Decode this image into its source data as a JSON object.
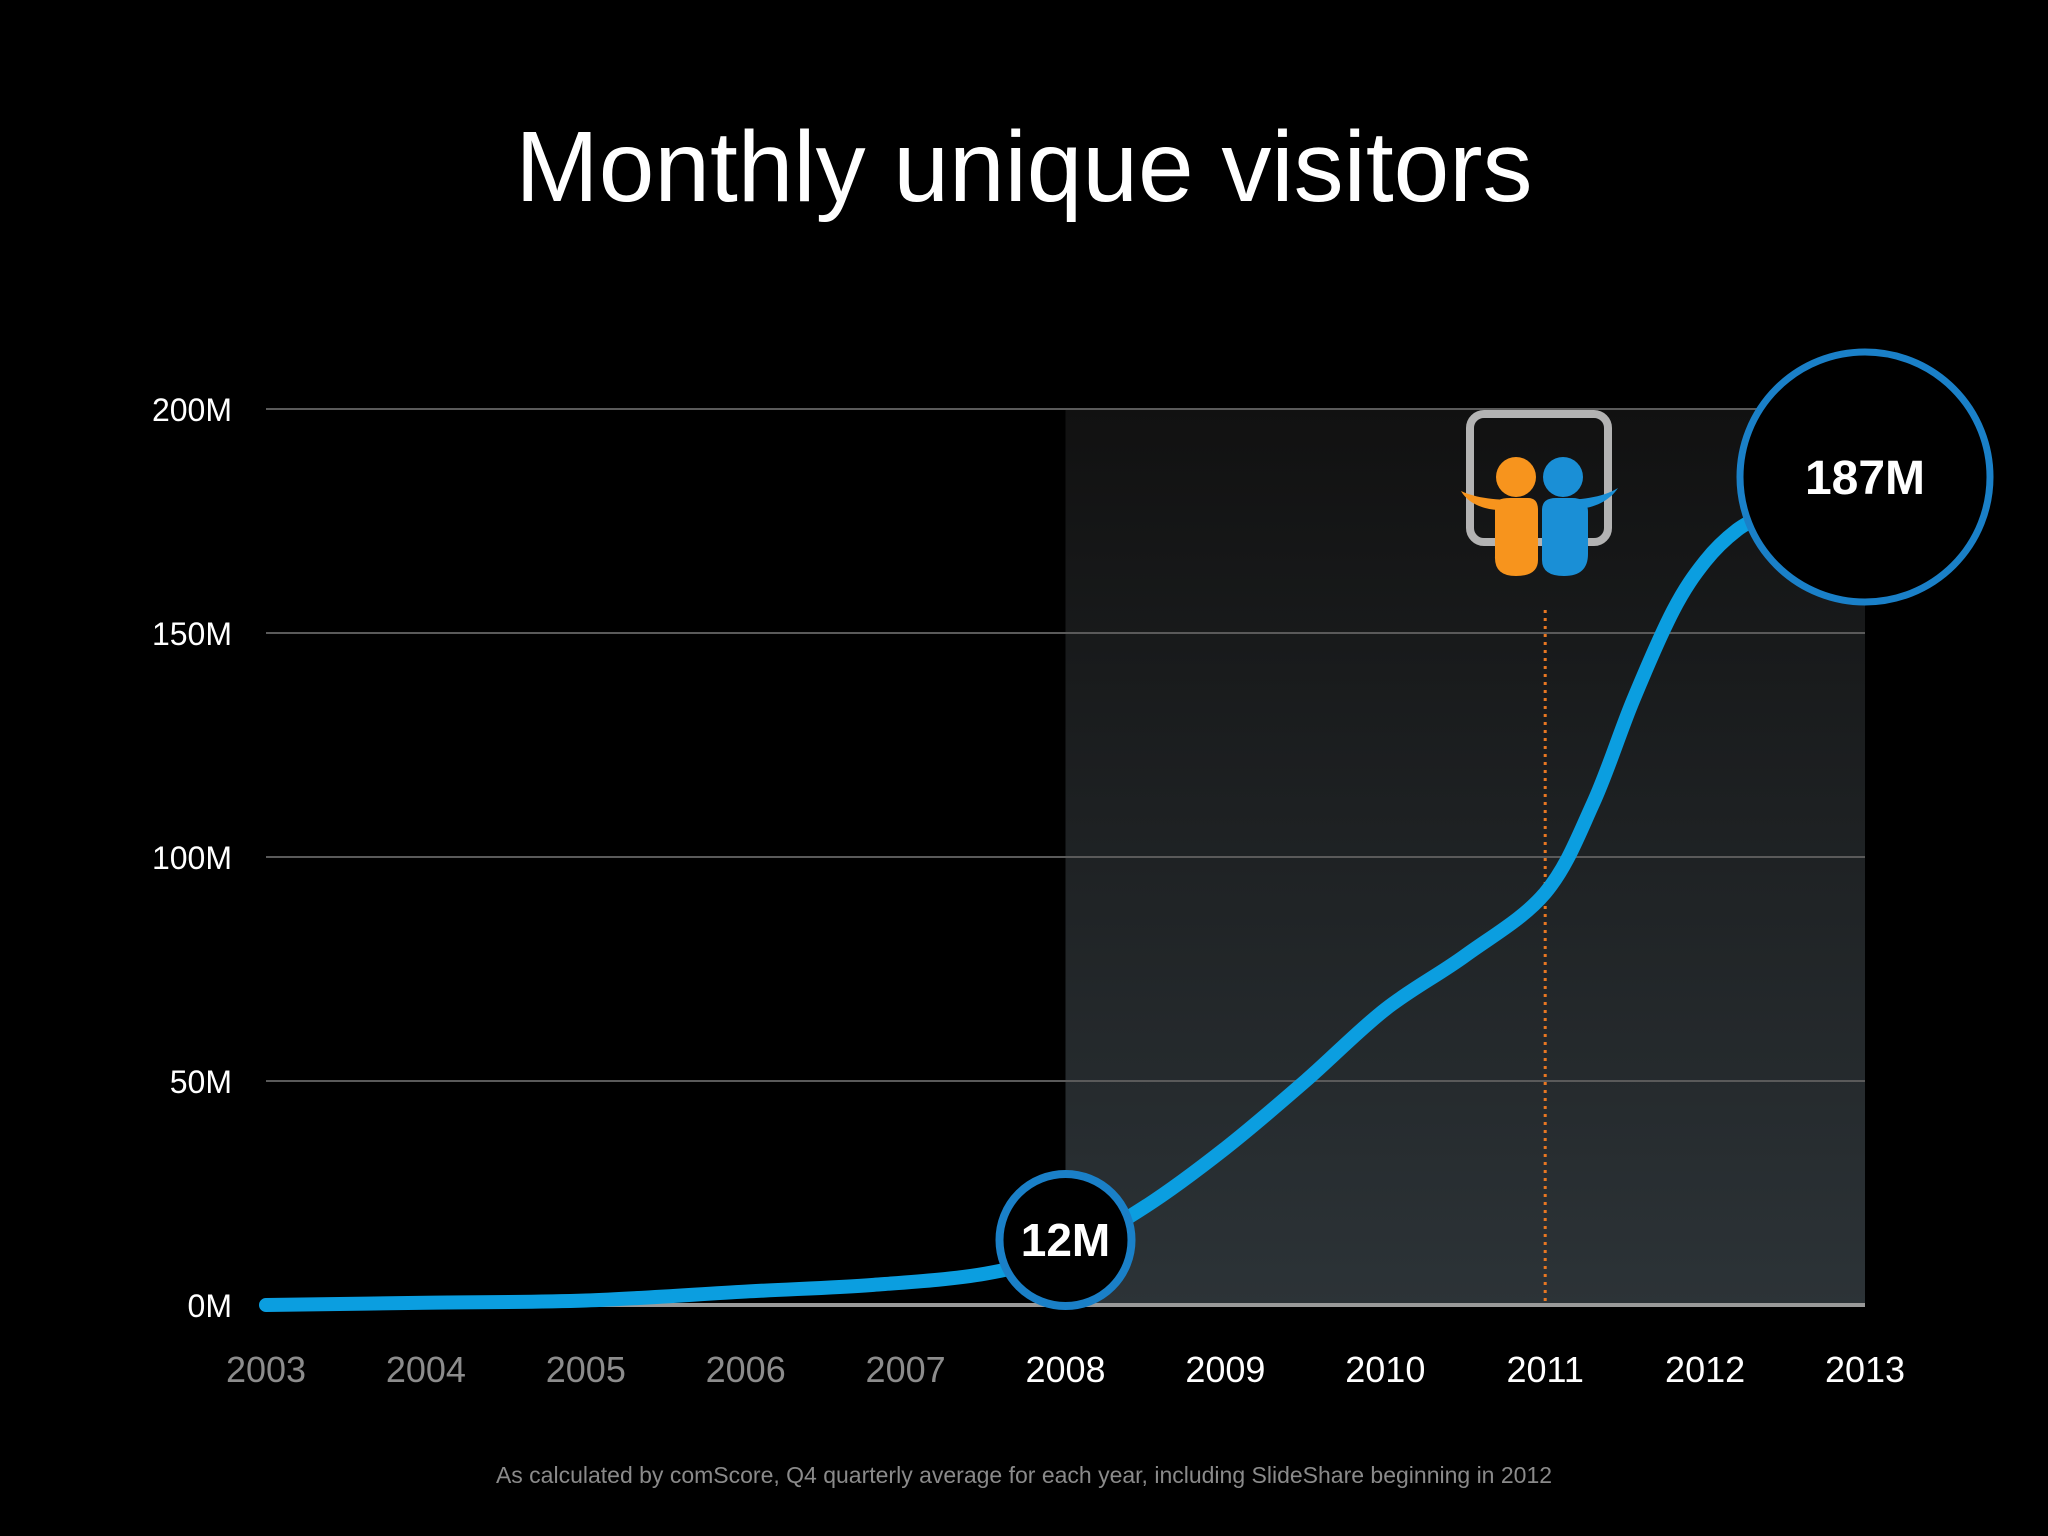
{
  "slide": {
    "footnote": "As calculated by comScore, Q4 quarterly average for each year, including SlideShare beginning in 2012"
  },
  "colors": {
    "background": "#000000",
    "line": "#0b9ee0",
    "bubble_border": "#1a80c8",
    "grid": "#5a5a5a",
    "marker": "#e87722",
    "past_tick": "#8c8c8c",
    "current_tick": "#ffffff",
    "logo_orange": "#f7941d",
    "logo_blue": "#1a8fd6",
    "logo_frame": "#b3b3b3"
  },
  "icons": {
    "logo": "slideshare-logo-icon"
  },
  "chart_data": {
    "type": "line",
    "title": "Monthly unique visitors",
    "xlabel": "",
    "ylabel": "",
    "x": [
      2003,
      2004,
      2005,
      2006,
      2007,
      2008,
      2009,
      2010,
      2011,
      2012,
      2013
    ],
    "xlim": [
      2003,
      2013
    ],
    "ylim": [
      0,
      200
    ],
    "y_unit": "M",
    "y_ticks": [
      "0M",
      "50M",
      "100M",
      "150M",
      "200M"
    ],
    "x_tick_labels": [
      "2003",
      "2004",
      "2005",
      "2006",
      "2007",
      "2008",
      "2009",
      "2010",
      "2011",
      "2012",
      "2013"
    ],
    "highlight_from_year": 2008,
    "marker_year": 2011,
    "grid": true,
    "series": [
      {
        "points": [
          [
            2003,
            0
          ],
          [
            2004,
            0.5
          ],
          [
            2005,
            1
          ],
          [
            2006,
            3
          ],
          [
            2006.8,
            4.5
          ],
          [
            2007.5,
            7
          ],
          [
            2008,
            12
          ],
          [
            2008.5,
            22
          ],
          [
            2009,
            35
          ],
          [
            2009.5,
            50
          ],
          [
            2010,
            66
          ],
          [
            2010.5,
            78
          ],
          [
            2011,
            92
          ],
          [
            2011.3,
            112
          ],
          [
            2011.55,
            135
          ],
          [
            2011.8,
            155
          ],
          [
            2012,
            166
          ],
          [
            2012.2,
            173
          ],
          [
            2012.4,
            177
          ]
        ]
      }
    ],
    "annotations": [
      {
        "label": "12M",
        "x": 2008,
        "y": 12
      },
      {
        "label": "187M",
        "x": 2013,
        "y": 187
      }
    ]
  }
}
